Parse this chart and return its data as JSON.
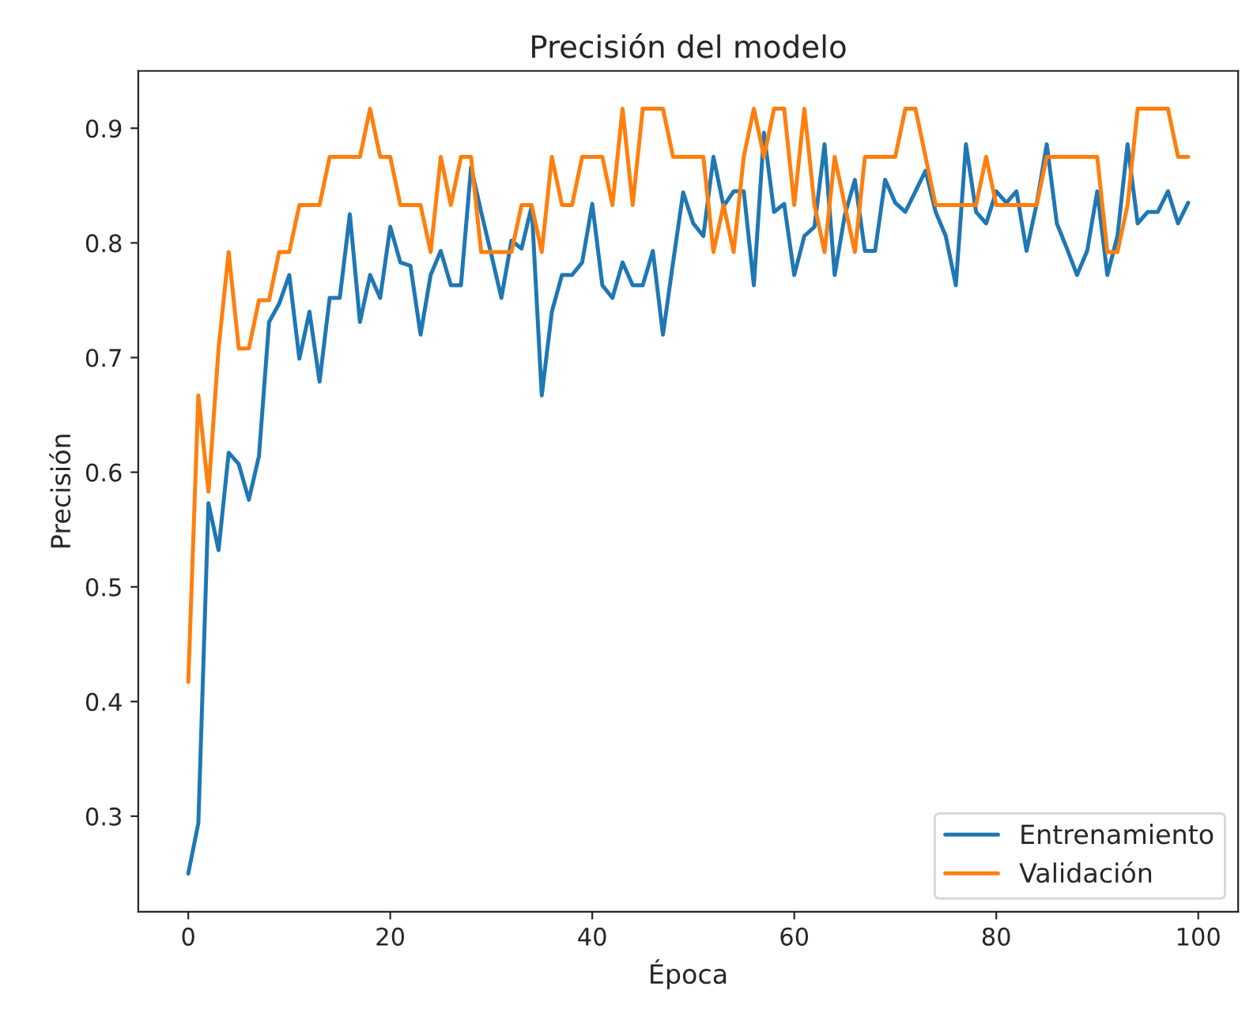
{
  "chart_data": {
    "type": "line",
    "title": "Precisión del modelo",
    "xlabel": "Época",
    "ylabel": "Precisión",
    "x": [
      0,
      1,
      2,
      3,
      4,
      5,
      6,
      7,
      8,
      9,
      10,
      11,
      12,
      13,
      14,
      15,
      16,
      17,
      18,
      19,
      20,
      21,
      22,
      23,
      24,
      25,
      26,
      27,
      28,
      29,
      30,
      31,
      32,
      33,
      34,
      35,
      36,
      37,
      38,
      39,
      40,
      41,
      42,
      43,
      44,
      45,
      46,
      47,
      48,
      49,
      50,
      51,
      52,
      53,
      54,
      55,
      56,
      57,
      58,
      59,
      60,
      61,
      62,
      63,
      64,
      65,
      66,
      67,
      68,
      69,
      70,
      71,
      72,
      73,
      74,
      75,
      76,
      77,
      78,
      79,
      80,
      81,
      82,
      83,
      84,
      85,
      86,
      87,
      88,
      89,
      90,
      91,
      92,
      93,
      94,
      95,
      96,
      97,
      98,
      99
    ],
    "series": [
      {
        "name": "Entrenamiento",
        "color": "#1f77b4",
        "values": [
          0.25,
          0.294,
          0.573,
          0.532,
          0.617,
          0.607,
          0.576,
          0.614,
          0.731,
          0.747,
          0.772,
          0.699,
          0.74,
          0.679,
          0.752,
          0.752,
          0.825,
          0.731,
          0.772,
          0.752,
          0.814,
          0.783,
          0.78,
          0.72,
          0.772,
          0.793,
          0.763,
          0.763,
          0.866,
          0.827,
          0.79,
          0.752,
          0.802,
          0.795,
          0.832,
          0.667,
          0.74,
          0.772,
          0.772,
          0.783,
          0.834,
          0.763,
          0.752,
          0.783,
          0.763,
          0.763,
          0.793,
          0.72,
          0.783,
          0.844,
          0.817,
          0.806,
          0.875,
          0.832,
          0.845,
          0.845,
          0.763,
          0.896,
          0.827,
          0.834,
          0.772,
          0.806,
          0.814,
          0.886,
          0.772,
          0.824,
          0.855,
          0.793,
          0.793,
          0.855,
          0.835,
          0.827,
          0.845,
          0.863,
          0.827,
          0.806,
          0.763,
          0.886,
          0.827,
          0.817,
          0.845,
          0.835,
          0.845,
          0.793,
          0.834,
          0.886,
          0.817,
          0.795,
          0.772,
          0.793,
          0.845,
          0.772,
          0.806,
          0.886,
          0.817,
          0.827,
          0.827,
          0.845,
          0.817,
          0.835
        ]
      },
      {
        "name": "Validación",
        "color": "#ff7f0e",
        "values": [
          0.417,
          0.667,
          0.583,
          0.708,
          0.792,
          0.708,
          0.708,
          0.75,
          0.75,
          0.792,
          0.792,
          0.833,
          0.833,
          0.833,
          0.875,
          0.875,
          0.875,
          0.875,
          0.917,
          0.875,
          0.875,
          0.833,
          0.833,
          0.833,
          0.792,
          0.875,
          0.833,
          0.875,
          0.875,
          0.792,
          0.792,
          0.792,
          0.792,
          0.833,
          0.833,
          0.792,
          0.875,
          0.833,
          0.833,
          0.875,
          0.875,
          0.875,
          0.833,
          0.917,
          0.833,
          0.917,
          0.917,
          0.917,
          0.875,
          0.875,
          0.875,
          0.875,
          0.792,
          0.833,
          0.792,
          0.875,
          0.917,
          0.875,
          0.917,
          0.917,
          0.833,
          0.917,
          0.833,
          0.792,
          0.875,
          0.833,
          0.792,
          0.875,
          0.875,
          0.875,
          0.875,
          0.917,
          0.917,
          0.875,
          0.833,
          0.833,
          0.833,
          0.833,
          0.833,
          0.875,
          0.833,
          0.833,
          0.833,
          0.833,
          0.833,
          0.875,
          0.875,
          0.875,
          0.875,
          0.875,
          0.875,
          0.792,
          0.792,
          0.833,
          0.917,
          0.917,
          0.917,
          0.917,
          0.875,
          0.875
        ]
      }
    ],
    "xlim": [
      -4.95,
      103.95
    ],
    "ylim": [
      0.2167,
      0.95
    ],
    "xticks": [
      0,
      20,
      40,
      60,
      80,
      100
    ],
    "yticks": [
      0.3,
      0.4,
      0.5,
      0.6,
      0.7,
      0.8,
      0.9
    ],
    "grid": false,
    "legend": "lower right",
    "marker": "none",
    "line_style": "solid"
  }
}
